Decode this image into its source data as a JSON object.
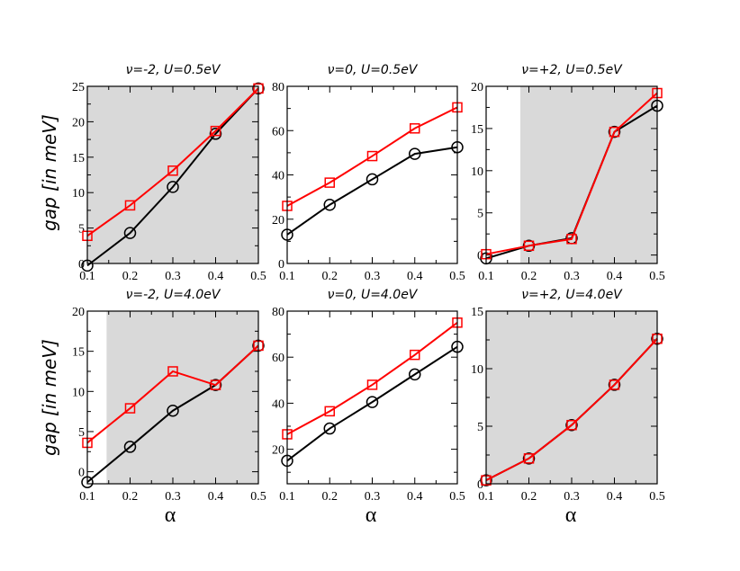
{
  "figure": {
    "ylabel": "gap [in meV]",
    "xlabel": "α"
  },
  "colors": {
    "red": "#ff0000",
    "black": "#000000",
    "shade": "#d9d9d9"
  },
  "chart_data": [
    {
      "type": "line",
      "title": "ν=-2, U=0.5eV",
      "x": [
        0.1,
        0.2,
        0.3,
        0.4,
        0.5
      ],
      "xlim": [
        0.1,
        0.5
      ],
      "xticks": [
        "0.1",
        "0.2",
        "0.3",
        "0.4",
        "0.5"
      ],
      "ylim": [
        0,
        25
      ],
      "yticks": [
        0,
        5,
        10,
        15,
        20,
        25
      ],
      "shade_from": 0.1,
      "series": [
        {
          "name": "circles",
          "color": "#000000",
          "marker": "circle",
          "values": [
            -0.3,
            4.3,
            10.8,
            18.3,
            24.7
          ]
        },
        {
          "name": "squares",
          "color": "#ff0000",
          "marker": "square",
          "values": [
            3.9,
            8.2,
            13.1,
            18.7,
            24.7
          ]
        }
      ]
    },
    {
      "type": "line",
      "title": "ν=0, U=0.5eV",
      "x": [
        0.1,
        0.2,
        0.3,
        0.4,
        0.5
      ],
      "xlim": [
        0.1,
        0.5
      ],
      "xticks": [
        "0.1",
        "0.2",
        "0.3",
        "0.4",
        "0.5"
      ],
      "ylim": [
        0,
        80
      ],
      "yticks": [
        0,
        20,
        40,
        60,
        80
      ],
      "shade_from": null,
      "series": [
        {
          "name": "circles",
          "color": "#000000",
          "marker": "circle",
          "values": [
            13,
            26.5,
            38,
            49.5,
            52.5
          ]
        },
        {
          "name": "squares",
          "color": "#ff0000",
          "marker": "square",
          "values": [
            26,
            36.5,
            48.5,
            61,
            70.5
          ]
        }
      ]
    },
    {
      "type": "line",
      "title": "ν=+2, U=0.5eV",
      "x": [
        0.1,
        0.2,
        0.3,
        0.4,
        0.5
      ],
      "xlim": [
        0.1,
        0.5
      ],
      "xticks": [
        "0.1",
        "0.2",
        "0.3",
        "0.4",
        "0.5"
      ],
      "ylim": [
        -1,
        20
      ],
      "yticks": [
        0,
        5,
        10,
        15,
        20
      ],
      "shade_from": 0.18,
      "series": [
        {
          "name": "circles",
          "color": "#000000",
          "marker": "circle",
          "values": [
            -0.4,
            1.1,
            2.0,
            14.6,
            17.7
          ]
        },
        {
          "name": "squares",
          "color": "#ff0000",
          "marker": "square",
          "values": [
            0.1,
            1.1,
            1.9,
            14.6,
            19.2
          ]
        }
      ]
    },
    {
      "type": "line",
      "title": "ν=-2, U=4.0eV",
      "x": [
        0.1,
        0.2,
        0.3,
        0.4,
        0.5
      ],
      "xlim": [
        0.1,
        0.5
      ],
      "xticks": [
        "0.1",
        "0.2",
        "0.3",
        "0.4",
        "0.5"
      ],
      "ylim": [
        -1.5,
        20
      ],
      "yticks": [
        0,
        5,
        10,
        15,
        20
      ],
      "shade_from": 0.145,
      "series": [
        {
          "name": "circles",
          "color": "#000000",
          "marker": "circle",
          "values": [
            -1.3,
            3.1,
            7.6,
            10.8,
            15.7
          ]
        },
        {
          "name": "squares",
          "color": "#ff0000",
          "marker": "square",
          "values": [
            3.6,
            7.9,
            12.5,
            10.8,
            15.7
          ]
        }
      ]
    },
    {
      "type": "line",
      "title": "ν=0, U=4.0eV",
      "x": [
        0.1,
        0.2,
        0.3,
        0.4,
        0.5
      ],
      "xlim": [
        0.1,
        0.5
      ],
      "xticks": [
        "0.1",
        "0.2",
        "0.3",
        "0.4",
        "0.5"
      ],
      "ylim": [
        5,
        80
      ],
      "yticks": [
        20,
        40,
        60,
        80
      ],
      "shade_from": null,
      "series": [
        {
          "name": "circles",
          "color": "#000000",
          "marker": "circle",
          "values": [
            15,
            29,
            40.5,
            52.5,
            64.5
          ]
        },
        {
          "name": "squares",
          "color": "#ff0000",
          "marker": "square",
          "values": [
            26.5,
            36.5,
            48,
            61,
            75
          ]
        }
      ]
    },
    {
      "type": "line",
      "title": "ν=+2, U=4.0eV",
      "x": [
        0.1,
        0.2,
        0.3,
        0.4,
        0.5
      ],
      "xlim": [
        0.1,
        0.5
      ],
      "xticks": [
        "0.1",
        "0.2",
        "0.3",
        "0.4",
        "0.5"
      ],
      "ylim": [
        0,
        15
      ],
      "yticks": [
        0,
        5,
        10,
        15
      ],
      "shade_from": 0.1,
      "series": [
        {
          "name": "circles",
          "color": "#000000",
          "marker": "circle",
          "values": [
            0.3,
            2.2,
            5.1,
            8.6,
            12.6
          ]
        },
        {
          "name": "squares",
          "color": "#ff0000",
          "marker": "square",
          "values": [
            0.3,
            2.2,
            5.1,
            8.6,
            12.6
          ]
        }
      ]
    }
  ]
}
